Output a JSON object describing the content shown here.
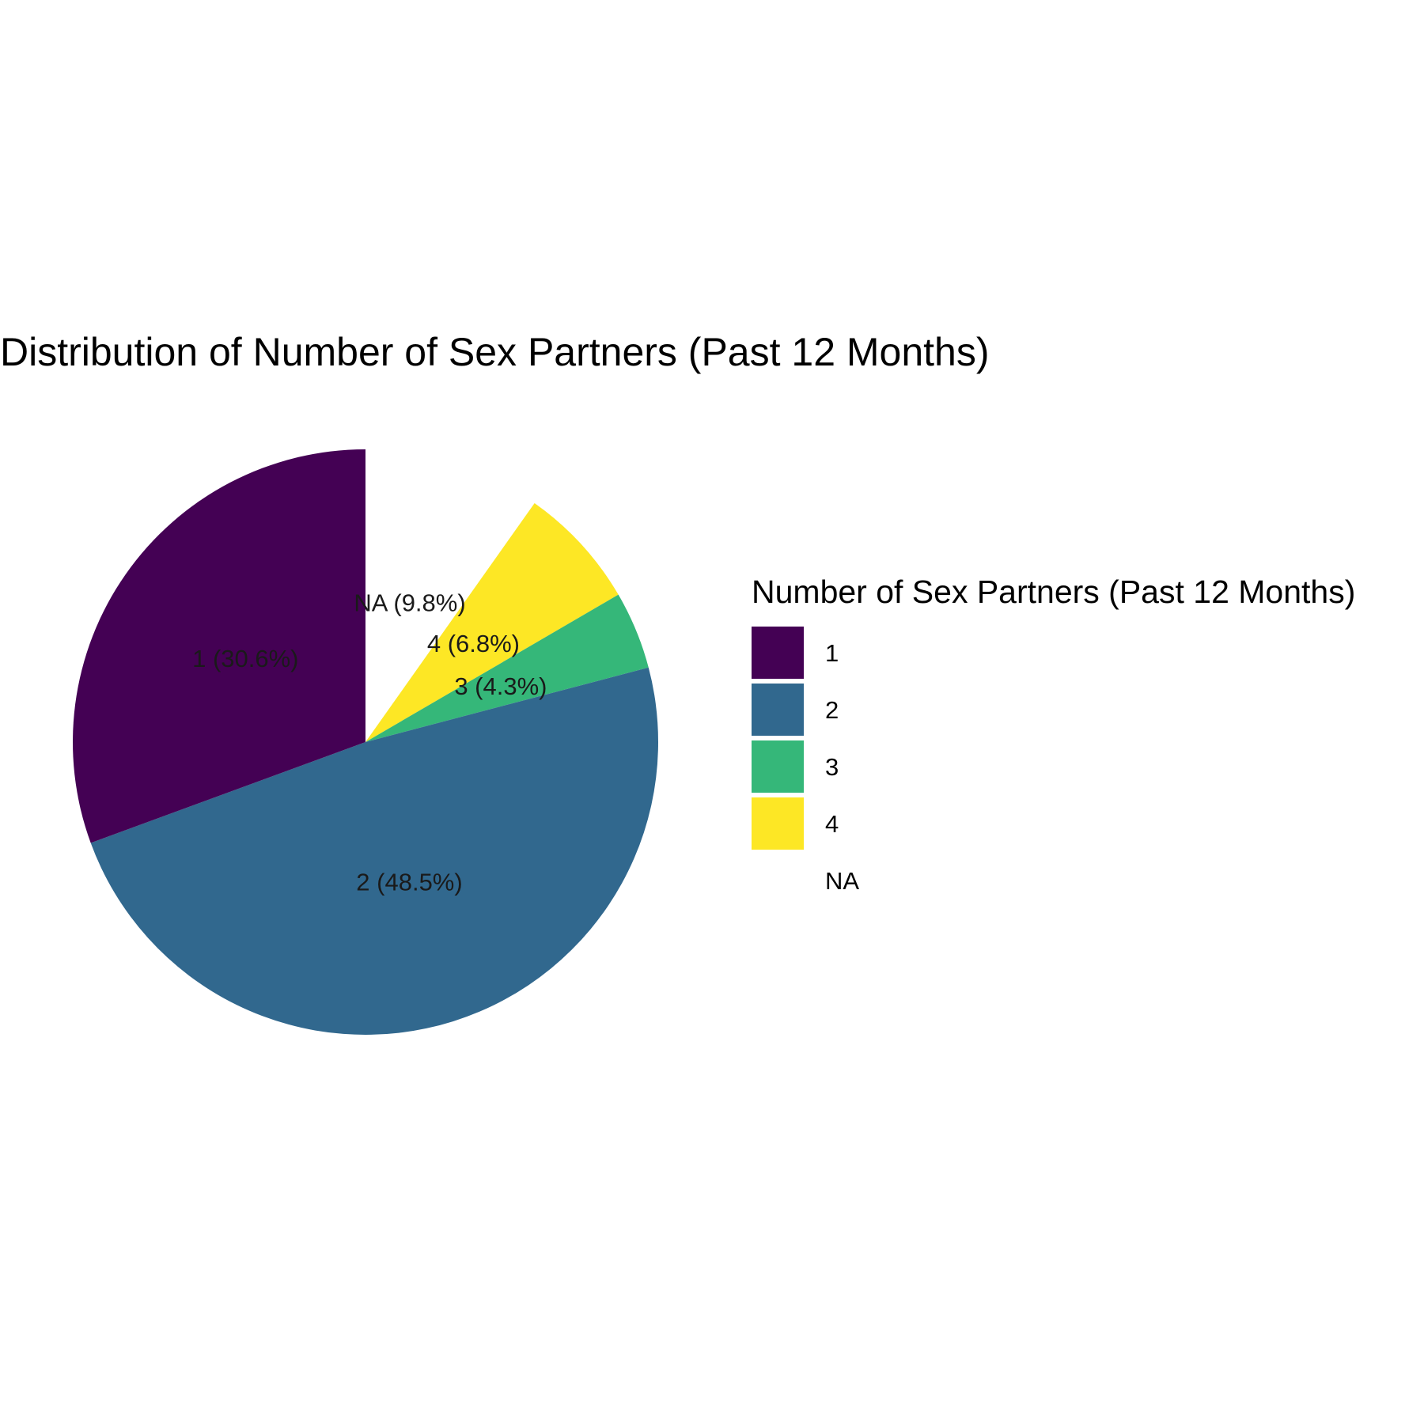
{
  "chart_data": {
    "type": "pie",
    "title": "Distribution of Number of Sex Partners (Past 12 Months)",
    "start_angle_deg": 0,
    "direction": "clockwise",
    "slices": [
      {
        "category": "NA",
        "label": "NA (9.8%)",
        "percent": 9.8,
        "color": "#ffffff"
      },
      {
        "category": "4",
        "label": "4 (6.8%)",
        "percent": 6.8,
        "color": "#fde725"
      },
      {
        "category": "3",
        "label": "3 (4.3%)",
        "percent": 4.3,
        "color": "#35b779"
      },
      {
        "category": "2",
        "label": "2 (48.5%)",
        "percent": 48.5,
        "color": "#31688e"
      },
      {
        "category": "1",
        "label": "1 (30.6%)",
        "percent": 30.6,
        "color": "#440154"
      }
    ],
    "legend": {
      "title": "Number of Sex Partners (Past 12 Months)",
      "position": "right",
      "items": [
        {
          "label": "1",
          "color": "#440154"
        },
        {
          "label": "2",
          "color": "#31688e"
        },
        {
          "label": "3",
          "color": "#35b779"
        },
        {
          "label": "4",
          "color": "#fde725"
        },
        {
          "label": "NA",
          "color": "#ffffff"
        }
      ]
    }
  }
}
